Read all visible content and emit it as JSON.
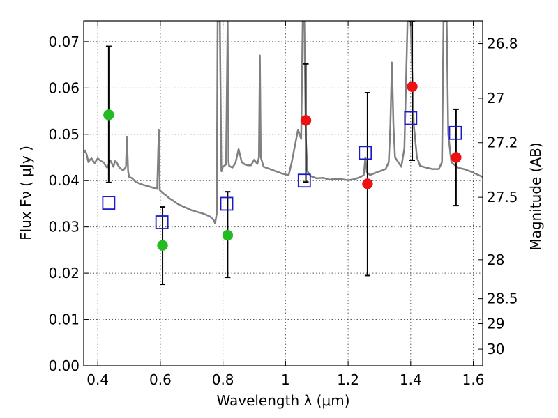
{
  "chart_data": {
    "type": "scatter",
    "title": "",
    "xlabel": "Wavelength  λ (μm)",
    "ylabel": "Flux  Fν  ( μJy )",
    "y2label": "Magnitude (AB)",
    "xlim": [
      0.355,
      1.63
    ],
    "ylim": [
      0.0,
      0.0745
    ],
    "grid": true,
    "x_ticks": [
      {
        "value": 0.4,
        "label": "0.4"
      },
      {
        "value": 0.6,
        "label": "0.6"
      },
      {
        "value": 0.8,
        "label": "0.8"
      },
      {
        "value": 1.0,
        "label": "1"
      },
      {
        "value": 1.2,
        "label": "1.2"
      },
      {
        "value": 1.4,
        "label": "1.4"
      },
      {
        "value": 1.6,
        "label": "1.6"
      }
    ],
    "y_ticks": [
      {
        "value": 0.0,
        "label": "0.00"
      },
      {
        "value": 0.01,
        "label": "0.01"
      },
      {
        "value": 0.02,
        "label": "0.02"
      },
      {
        "value": 0.03,
        "label": "0.03"
      },
      {
        "value": 0.04,
        "label": "0.04"
      },
      {
        "value": 0.05,
        "label": "0.05"
      },
      {
        "value": 0.06,
        "label": "0.06"
      },
      {
        "value": 0.07,
        "label": "0.07"
      }
    ],
    "y2_ticks": [
      {
        "flux": 0.0696,
        "label": "26.8"
      },
      {
        "flux": 0.0578,
        "label": "27"
      },
      {
        "flux": 0.0482,
        "label": "27.2"
      },
      {
        "flux": 0.0364,
        "label": "27.5"
      },
      {
        "flux": 0.0229,
        "label": "28"
      },
      {
        "flux": 0.0145,
        "label": "28.5"
      },
      {
        "flux": 0.0091,
        "label": "29"
      },
      {
        "flux": 0.0036,
        "label": "30"
      }
    ],
    "colors": {
      "spectrum": "#808080",
      "green": "#22bb22",
      "red": "#ee1111",
      "model_square": "#1a1acc",
      "errorbar": "#000000"
    },
    "spectrum": {
      "name": "",
      "x": [
        0.355,
        0.36,
        0.365,
        0.37,
        0.375,
        0.38,
        0.385,
        0.39,
        0.395,
        0.4,
        0.405,
        0.41,
        0.415,
        0.42,
        0.425,
        0.43,
        0.435,
        0.44,
        0.445,
        0.45,
        0.455,
        0.46,
        0.465,
        0.47,
        0.475,
        0.48,
        0.485,
        0.49,
        0.493,
        0.497,
        0.5,
        0.51,
        0.52,
        0.53,
        0.54,
        0.55,
        0.56,
        0.57,
        0.58,
        0.59,
        0.595,
        0.598,
        0.6,
        0.61,
        0.62,
        0.63,
        0.64,
        0.65,
        0.66,
        0.67,
        0.68,
        0.7,
        0.72,
        0.74,
        0.76,
        0.77,
        0.775,
        0.78,
        0.783,
        0.785,
        0.79,
        0.795,
        0.8,
        0.81,
        0.815,
        0.818,
        0.82,
        0.83,
        0.84,
        0.85,
        0.86,
        0.87,
        0.88,
        0.89,
        0.9,
        0.91,
        0.915,
        0.918,
        0.921,
        0.93,
        0.95,
        0.97,
        0.99,
        1.01,
        1.02,
        1.03,
        1.04,
        1.05,
        1.055,
        1.06,
        1.065,
        1.07,
        1.08,
        1.1,
        1.12,
        1.14,
        1.16,
        1.18,
        1.2,
        1.22,
        1.24,
        1.25,
        1.255,
        1.26,
        1.27,
        1.28,
        1.3,
        1.32,
        1.33,
        1.335,
        1.34,
        1.345,
        1.35,
        1.37,
        1.38,
        1.39,
        1.4,
        1.41,
        1.42,
        1.43,
        1.45,
        1.47,
        1.49,
        1.5,
        1.505,
        1.51,
        1.515,
        1.52,
        1.53,
        1.55,
        1.57,
        1.59,
        1.61,
        1.63
      ],
      "y": [
        0.046,
        0.0465,
        0.0455,
        0.044,
        0.0445,
        0.0448,
        0.0442,
        0.0438,
        0.0443,
        0.0448,
        0.0445,
        0.0442,
        0.0441,
        0.0438,
        0.0432,
        0.0428,
        0.0435,
        0.0444,
        0.0437,
        0.043,
        0.0442,
        0.044,
        0.0433,
        0.0428,
        0.0425,
        0.0422,
        0.0425,
        0.043,
        0.0495,
        0.042,
        0.0408,
        0.0405,
        0.0398,
        0.0395,
        0.0392,
        0.039,
        0.0388,
        0.0386,
        0.0384,
        0.0382,
        0.051,
        0.038,
        0.0378,
        0.0372,
        0.0367,
        0.0361,
        0.0357,
        0.0352,
        0.0348,
        0.0345,
        0.0342,
        0.0336,
        0.0332,
        0.0328,
        0.0322,
        0.0315,
        0.0308,
        0.0328,
        0.0745,
        0.0745,
        0.0745,
        0.042,
        0.043,
        0.0435,
        0.0745,
        0.044,
        0.0432,
        0.0428,
        0.0438,
        0.0468,
        0.044,
        0.0435,
        0.0433,
        0.0433,
        0.0445,
        0.0436,
        0.045,
        0.067,
        0.045,
        0.043,
        0.0425,
        0.042,
        0.0415,
        0.0412,
        0.044,
        0.0475,
        0.051,
        0.049,
        0.0745,
        0.0745,
        0.049,
        0.042,
        0.041,
        0.0405,
        0.0406,
        0.0402,
        0.0404,
        0.0403,
        0.0401,
        0.0403,
        0.0408,
        0.0412,
        0.045,
        0.0418,
        0.0412,
        0.0415,
        0.042,
        0.0425,
        0.044,
        0.052,
        0.0655,
        0.052,
        0.045,
        0.043,
        0.047,
        0.0745,
        0.0745,
        0.052,
        0.045,
        0.0432,
        0.0428,
        0.0425,
        0.0425,
        0.044,
        0.0745,
        0.0745,
        0.0745,
        0.05,
        0.044,
        0.0428,
        0.0425,
        0.042,
        0.0414,
        0.0408
      ]
    },
    "measured": [
      {
        "x": 0.435,
        "y": 0.0542,
        "yerr_low": 0.0396,
        "yerr_high": 0.069,
        "color": "green"
      },
      {
        "x": 0.607,
        "y": 0.026,
        "yerr_low": 0.0176,
        "yerr_high": 0.0343,
        "color": "green"
      },
      {
        "x": 0.815,
        "y": 0.0282,
        "yerr_low": 0.0191,
        "yerr_high": 0.0376,
        "color": "green"
      },
      {
        "x": 1.065,
        "y": 0.053,
        "yerr_low": 0.0397,
        "yerr_high": 0.0652,
        "color": "red"
      },
      {
        "x": 1.262,
        "y": 0.0393,
        "yerr_low": 0.0195,
        "yerr_high": 0.059,
        "color": "red"
      },
      {
        "x": 1.405,
        "y": 0.0603,
        "yerr_low": 0.0444,
        "yerr_high": 0.0745,
        "color": "red"
      },
      {
        "x": 1.545,
        "y": 0.045,
        "yerr_low": 0.0346,
        "yerr_high": 0.0554,
        "color": "red"
      }
    ],
    "model_bands": [
      {
        "x": 0.435,
        "y": 0.0352
      },
      {
        "x": 0.605,
        "y": 0.031
      },
      {
        "x": 0.812,
        "y": 0.035
      },
      {
        "x": 1.06,
        "y": 0.04
      },
      {
        "x": 1.255,
        "y": 0.046
      },
      {
        "x": 1.4,
        "y": 0.0535
      },
      {
        "x": 1.543,
        "y": 0.0503
      }
    ]
  }
}
